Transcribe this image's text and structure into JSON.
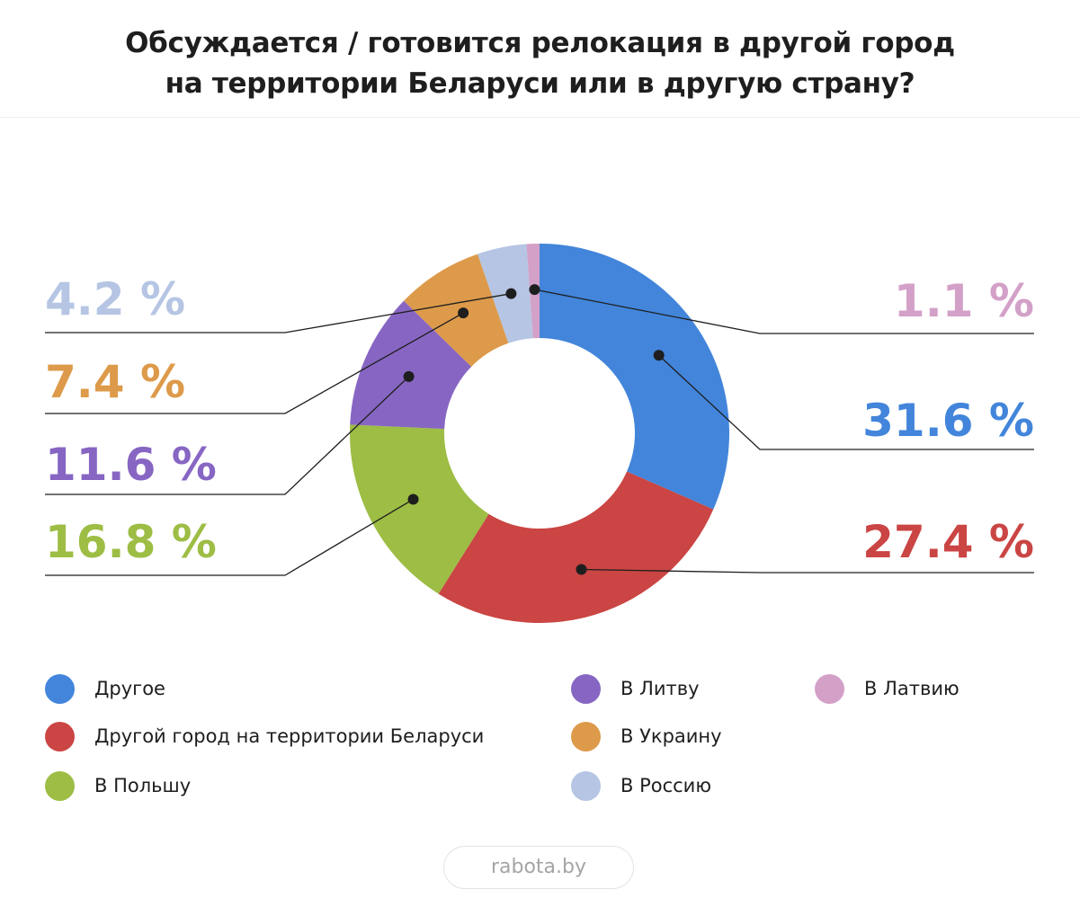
{
  "title_lines": [
    "Обсуждается / готовится релокация в другой город",
    "на территории Беларуси или в другую страну?"
  ],
  "brand": "rabota.by",
  "chart_data": {
    "type": "pie",
    "donut": true,
    "title": "Обсуждается / готовится релокация в другой город на территории Беларуси или в другую страну?",
    "unit": "%",
    "categories": [
      "Другое",
      "Другой город на территории Беларуси",
      "В Польшу",
      "В Литву",
      "В Украину",
      "В Россию",
      "В Латвию"
    ],
    "values": [
      31.6,
      27.4,
      16.8,
      11.6,
      7.4,
      4.2,
      1.1
    ],
    "value_labels": [
      "31.6 %",
      "27.4 %",
      "16.8 %",
      "11.6 %",
      "7.4 %",
      "4.2 %",
      "1.1 %"
    ],
    "colors": [
      "#4285db",
      "#ca4543",
      "#9dbd44",
      "#8766c3",
      "#dd9a4a",
      "#b5c5e3",
      "#d3a0c8"
    ],
    "legend_position": "bottom"
  }
}
